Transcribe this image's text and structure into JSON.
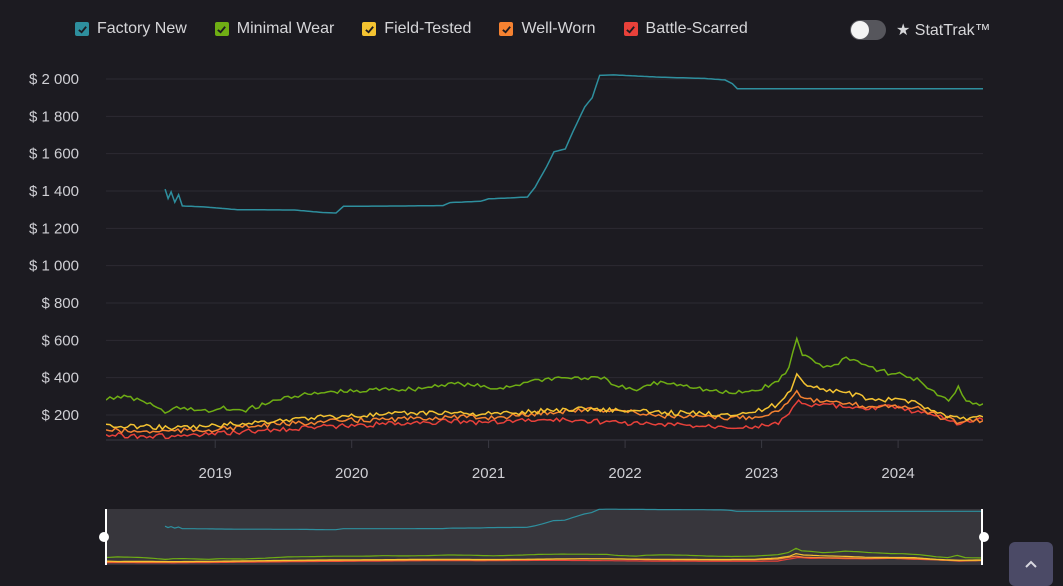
{
  "legend": [
    {
      "label": "Factory New",
      "color": "#2e8f9e",
      "checked": true,
      "icon": "checkbox-checked-icon"
    },
    {
      "label": "Minimal Wear",
      "color": "#6fae14",
      "checked": true,
      "icon": "checkbox-checked-icon"
    },
    {
      "label": "Field-Tested",
      "color": "#f4c331",
      "checked": true,
      "icon": "checkbox-checked-icon"
    },
    {
      "label": "Well-Worn",
      "color": "#f58231",
      "checked": true,
      "icon": "checkbox-checked-icon"
    },
    {
      "label": "Battle-Scarred",
      "color": "#e8413a",
      "checked": true,
      "icon": "checkbox-checked-icon"
    }
  ],
  "stattrak": {
    "label": "★ StatTrak™",
    "on": false
  },
  "scroll_top": {
    "icon": "chevron-up-icon"
  },
  "chart_data": {
    "type": "line",
    "title": "",
    "xlabel": "",
    "ylabel": "",
    "x_range": [
      "2018-03-15",
      "2024-08-15"
    ],
    "x_ticks": [
      "2019",
      "2020",
      "2021",
      "2022",
      "2023",
      "2024"
    ],
    "y_ticks": [
      200,
      400,
      600,
      800,
      1000,
      1200,
      1400,
      1600,
      1800,
      2000
    ],
    "y_tick_labels": [
      "$ 200",
      "$ 400",
      "$ 600",
      "$ 800",
      "$ 1 000",
      "$ 1 200",
      "$ 1 400",
      "$ 1 600",
      "$ 1 800",
      "$ 2 000"
    ],
    "ylim": [
      100,
      2050
    ],
    "grid": true,
    "legend_position": "top",
    "navigator": true,
    "series": [
      {
        "name": "Factory New",
        "points": [
          [
            "2018-08-20",
            1410
          ],
          [
            "2018-08-28",
            1360
          ],
          [
            "2018-09-05",
            1395
          ],
          [
            "2018-09-15",
            1340
          ],
          [
            "2018-09-25",
            1380
          ],
          [
            "2018-10-05",
            1320
          ],
          [
            "2018-12-01",
            1315
          ],
          [
            "2019-03-01",
            1300
          ],
          [
            "2019-08-01",
            1298
          ],
          [
            "2019-10-15",
            1285
          ],
          [
            "2019-11-20",
            1282
          ],
          [
            "2019-12-10",
            1318
          ],
          [
            "2020-06-01",
            1320
          ],
          [
            "2020-09-01",
            1322
          ],
          [
            "2020-09-20",
            1338
          ],
          [
            "2020-12-10",
            1345
          ],
          [
            "2021-01-01",
            1358
          ],
          [
            "2021-03-01",
            1363
          ],
          [
            "2021-04-15",
            1368
          ],
          [
            "2021-05-05",
            1420
          ],
          [
            "2021-06-05",
            1530
          ],
          [
            "2021-06-25",
            1610
          ],
          [
            "2021-07-25",
            1625
          ],
          [
            "2021-08-15",
            1720
          ],
          [
            "2021-09-15",
            1850
          ],
          [
            "2021-10-05",
            1900
          ],
          [
            "2021-10-25",
            2020
          ],
          [
            "2021-12-01",
            2022
          ],
          [
            "2022-04-01",
            2010
          ],
          [
            "2022-08-01",
            2003
          ],
          [
            "2022-09-25",
            1995
          ],
          [
            "2022-10-15",
            1975
          ],
          [
            "2022-10-28",
            1948
          ],
          [
            "2023-06-01",
            1948
          ],
          [
            "2024-08-15",
            1948
          ]
        ]
      },
      {
        "name": "Minimal Wear",
        "points": [
          [
            "2018-03-15",
            280
          ],
          [
            "2018-04-15",
            300
          ],
          [
            "2018-06-15",
            280
          ],
          [
            "2018-07-20",
            250
          ],
          [
            "2018-08-20",
            210
          ],
          [
            "2018-09-10",
            235
          ],
          [
            "2018-10-10",
            240
          ],
          [
            "2018-11-15",
            225
          ],
          [
            "2018-12-15",
            215
          ],
          [
            "2019-01-15",
            235
          ],
          [
            "2019-03-15",
            225
          ],
          [
            "2019-05-15",
            255
          ],
          [
            "2019-06-15",
            280
          ],
          [
            "2019-07-15",
            300
          ],
          [
            "2019-09-15",
            310
          ],
          [
            "2019-11-15",
            325
          ],
          [
            "2020-02-01",
            325
          ],
          [
            "2020-04-01",
            345
          ],
          [
            "2020-05-15",
            335
          ],
          [
            "2020-07-15",
            345
          ],
          [
            "2020-09-15",
            370
          ],
          [
            "2020-11-15",
            360
          ],
          [
            "2021-01-15",
            340
          ],
          [
            "2021-03-15",
            360
          ],
          [
            "2021-04-15",
            375
          ],
          [
            "2021-05-15",
            390
          ],
          [
            "2021-07-15",
            400
          ],
          [
            "2021-09-15",
            398
          ],
          [
            "2021-11-15",
            390
          ],
          [
            "2021-12-15",
            350
          ],
          [
            "2022-02-01",
            330
          ],
          [
            "2022-03-01",
            360
          ],
          [
            "2022-04-15",
            375
          ],
          [
            "2022-06-15",
            360
          ],
          [
            "2022-08-15",
            330
          ],
          [
            "2022-10-15",
            315
          ],
          [
            "2022-12-15",
            330
          ],
          [
            "2023-02-15",
            380
          ],
          [
            "2023-03-15",
            455
          ],
          [
            "2023-04-05",
            610
          ],
          [
            "2023-04-20",
            520
          ],
          [
            "2023-05-15",
            500
          ],
          [
            "2023-06-15",
            455
          ],
          [
            "2023-07-15",
            470
          ],
          [
            "2023-08-15",
            510
          ],
          [
            "2023-09-15",
            490
          ],
          [
            "2023-10-15",
            460
          ],
          [
            "2023-11-15",
            440
          ],
          [
            "2023-12-15",
            420
          ],
          [
            "2024-01-15",
            415
          ],
          [
            "2024-03-01",
            380
          ],
          [
            "2024-04-15",
            305
          ],
          [
            "2024-05-15",
            275
          ],
          [
            "2024-06-10",
            355
          ],
          [
            "2024-07-01",
            275
          ],
          [
            "2024-08-15",
            260
          ]
        ]
      },
      {
        "name": "Field-Tested",
        "points": [
          [
            "2018-03-15",
            150
          ],
          [
            "2018-04-15",
            135
          ],
          [
            "2018-06-15",
            140
          ],
          [
            "2018-09-15",
            130
          ],
          [
            "2018-12-15",
            140
          ],
          [
            "2019-03-15",
            155
          ],
          [
            "2019-06-15",
            170
          ],
          [
            "2019-09-15",
            185
          ],
          [
            "2019-12-15",
            195
          ],
          [
            "2020-03-15",
            200
          ],
          [
            "2020-06-15",
            210
          ],
          [
            "2020-09-15",
            215
          ],
          [
            "2020-12-15",
            205
          ],
          [
            "2021-03-15",
            210
          ],
          [
            "2021-06-15",
            225
          ],
          [
            "2021-09-15",
            235
          ],
          [
            "2021-12-15",
            225
          ],
          [
            "2022-03-15",
            215
          ],
          [
            "2022-06-15",
            210
          ],
          [
            "2022-09-15",
            205
          ],
          [
            "2022-12-15",
            215
          ],
          [
            "2023-02-15",
            260
          ],
          [
            "2023-03-20",
            330
          ],
          [
            "2023-04-05",
            420
          ],
          [
            "2023-04-25",
            370
          ],
          [
            "2023-06-15",
            340
          ],
          [
            "2023-08-15",
            320
          ],
          [
            "2023-10-15",
            285
          ],
          [
            "2023-12-15",
            280
          ],
          [
            "2024-02-15",
            275
          ],
          [
            "2024-04-15",
            210
          ],
          [
            "2024-06-15",
            180
          ],
          [
            "2024-08-15",
            190
          ]
        ]
      },
      {
        "name": "Well-Worn",
        "points": [
          [
            "2018-03-15",
            120
          ],
          [
            "2018-06-15",
            110
          ],
          [
            "2018-09-15",
            115
          ],
          [
            "2018-12-15",
            120
          ],
          [
            "2019-03-15",
            135
          ],
          [
            "2019-06-15",
            150
          ],
          [
            "2019-09-15",
            160
          ],
          [
            "2019-12-15",
            170
          ],
          [
            "2020-03-15",
            175
          ],
          [
            "2020-06-15",
            180
          ],
          [
            "2020-09-15",
            190
          ],
          [
            "2020-12-15",
            185
          ],
          [
            "2021-03-15",
            195
          ],
          [
            "2021-06-15",
            215
          ],
          [
            "2021-09-15",
            230
          ],
          [
            "2021-12-15",
            225
          ],
          [
            "2022-03-15",
            200
          ],
          [
            "2022-06-15",
            190
          ],
          [
            "2022-09-15",
            185
          ],
          [
            "2022-12-15",
            190
          ],
          [
            "2023-02-15",
            220
          ],
          [
            "2023-04-05",
            330
          ],
          [
            "2023-04-25",
            290
          ],
          [
            "2023-06-15",
            270
          ],
          [
            "2023-08-15",
            260
          ],
          [
            "2023-10-15",
            245
          ],
          [
            "2023-12-15",
            250
          ],
          [
            "2024-02-15",
            240
          ],
          [
            "2024-04-15",
            195
          ],
          [
            "2024-06-15",
            160
          ],
          [
            "2024-08-15",
            170
          ]
        ]
      },
      {
        "name": "Battle-Scarred",
        "points": [
          [
            "2018-03-15",
            95
          ],
          [
            "2018-06-15",
            88
          ],
          [
            "2018-09-15",
            85
          ],
          [
            "2018-12-15",
            95
          ],
          [
            "2019-03-15",
            110
          ],
          [
            "2019-06-15",
            120
          ],
          [
            "2019-09-15",
            135
          ],
          [
            "2019-12-15",
            140
          ],
          [
            "2020-03-15",
            150
          ],
          [
            "2020-06-15",
            160
          ],
          [
            "2020-09-15",
            165
          ],
          [
            "2020-12-15",
            160
          ],
          [
            "2021-03-15",
            170
          ],
          [
            "2021-06-15",
            175
          ],
          [
            "2021-09-15",
            170
          ],
          [
            "2021-12-15",
            160
          ],
          [
            "2022-03-15",
            150
          ],
          [
            "2022-06-15",
            145
          ],
          [
            "2022-09-15",
            140
          ],
          [
            "2022-12-15",
            140
          ],
          [
            "2023-02-15",
            150
          ],
          [
            "2023-03-25",
            240
          ],
          [
            "2023-04-10",
            280
          ],
          [
            "2023-05-15",
            245
          ],
          [
            "2023-06-15",
            260
          ],
          [
            "2023-08-15",
            240
          ],
          [
            "2023-10-15",
            230
          ],
          [
            "2023-12-15",
            250
          ],
          [
            "2024-02-15",
            215
          ],
          [
            "2024-04-15",
            195
          ],
          [
            "2024-06-15",
            150
          ],
          [
            "2024-08-15",
            175
          ]
        ]
      }
    ]
  }
}
